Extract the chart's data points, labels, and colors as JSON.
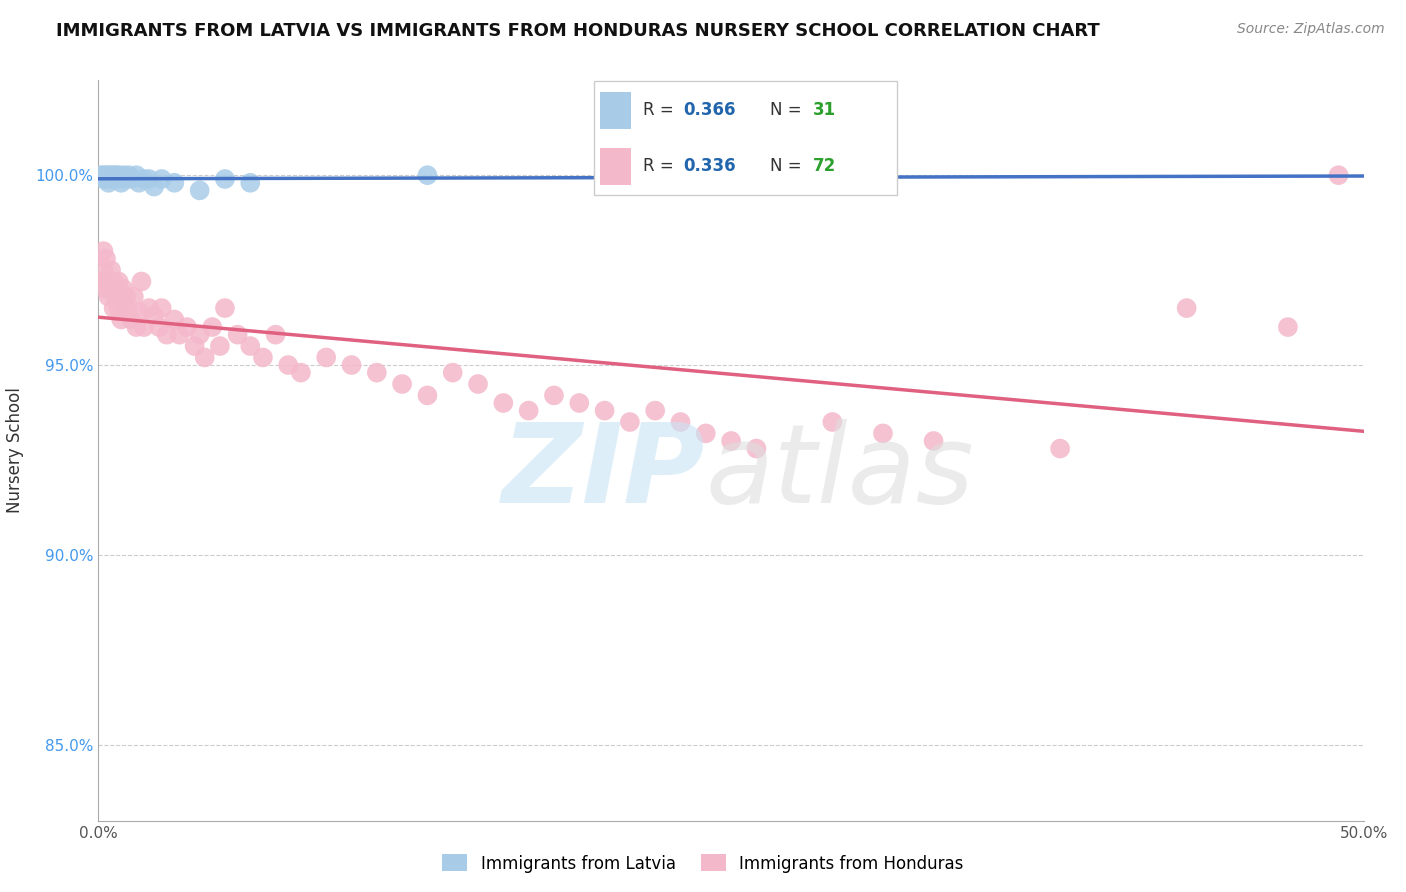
{
  "title": "IMMIGRANTS FROM LATVIA VS IMMIGRANTS FROM HONDURAS NURSERY SCHOOL CORRELATION CHART",
  "source": "Source: ZipAtlas.com",
  "ylabel": "Nursery School",
  "xlim": [
    0.0,
    0.5
  ],
  "ylim": [
    0.83,
    1.025
  ],
  "y_ticks": [
    0.85,
    0.9,
    0.95,
    1.0
  ],
  "y_tick_labels": [
    "85.0%",
    "90.0%",
    "95.0%",
    "100.0%"
  ],
  "latvia_color": "#a8cce8",
  "honduras_color": "#f4b8cb",
  "latvia_line_color": "#4472c4",
  "honduras_line_color": "#e06080",
  "legend_R_color": "#2166ac",
  "legend_N_color": "#2ca02c",
  "latvia_R": 0.366,
  "latvia_N": 31,
  "honduras_R": 0.336,
  "honduras_N": 72,
  "latvia_x": [
    0.001,
    0.002,
    0.002,
    0.003,
    0.003,
    0.004,
    0.004,
    0.005,
    0.005,
    0.006,
    0.006,
    0.007,
    0.007,
    0.008,
    0.009,
    0.01,
    0.01,
    0.012,
    0.013,
    0.015,
    0.016,
    0.018,
    0.02,
    0.022,
    0.025,
    0.03,
    0.04,
    0.05,
    0.06,
    0.13,
    0.31
  ],
  "latvia_y": [
    1.0,
    1.0,
    0.999,
    1.0,
    0.999,
    1.0,
    0.998,
    1.0,
    0.999,
    1.0,
    0.999,
    1.0,
    0.999,
    1.0,
    0.998,
    1.0,
    0.999,
    1.0,
    0.999,
    1.0,
    0.998,
    0.999,
    0.999,
    0.997,
    0.999,
    0.998,
    0.996,
    0.999,
    0.998,
    1.0,
    1.0
  ],
  "honduras_x": [
    0.001,
    0.002,
    0.002,
    0.003,
    0.003,
    0.004,
    0.004,
    0.005,
    0.005,
    0.006,
    0.006,
    0.007,
    0.007,
    0.008,
    0.008,
    0.009,
    0.009,
    0.01,
    0.01,
    0.011,
    0.012,
    0.013,
    0.014,
    0.015,
    0.016,
    0.017,
    0.018,
    0.02,
    0.022,
    0.024,
    0.025,
    0.027,
    0.03,
    0.032,
    0.035,
    0.038,
    0.04,
    0.042,
    0.045,
    0.048,
    0.05,
    0.055,
    0.06,
    0.065,
    0.07,
    0.075,
    0.08,
    0.09,
    0.1,
    0.11,
    0.12,
    0.13,
    0.14,
    0.15,
    0.16,
    0.17,
    0.18,
    0.19,
    0.2,
    0.21,
    0.22,
    0.23,
    0.24,
    0.25,
    0.26,
    0.29,
    0.31,
    0.33,
    0.38,
    0.43,
    0.47,
    0.49
  ],
  "honduras_y": [
    0.972,
    0.98,
    0.975,
    0.978,
    0.97,
    0.972,
    0.968,
    0.975,
    0.97,
    0.972,
    0.965,
    0.968,
    0.97,
    0.965,
    0.972,
    0.968,
    0.962,
    0.97,
    0.966,
    0.968,
    0.964,
    0.962,
    0.968,
    0.96,
    0.964,
    0.972,
    0.96,
    0.965,
    0.963,
    0.96,
    0.965,
    0.958,
    0.962,
    0.958,
    0.96,
    0.955,
    0.958,
    0.952,
    0.96,
    0.955,
    0.965,
    0.958,
    0.955,
    0.952,
    0.958,
    0.95,
    0.948,
    0.952,
    0.95,
    0.948,
    0.945,
    0.942,
    0.948,
    0.945,
    0.94,
    0.938,
    0.942,
    0.94,
    0.938,
    0.935,
    0.938,
    0.935,
    0.932,
    0.93,
    0.928,
    0.935,
    0.932,
    0.93,
    0.928,
    0.965,
    0.96,
    1.0
  ]
}
